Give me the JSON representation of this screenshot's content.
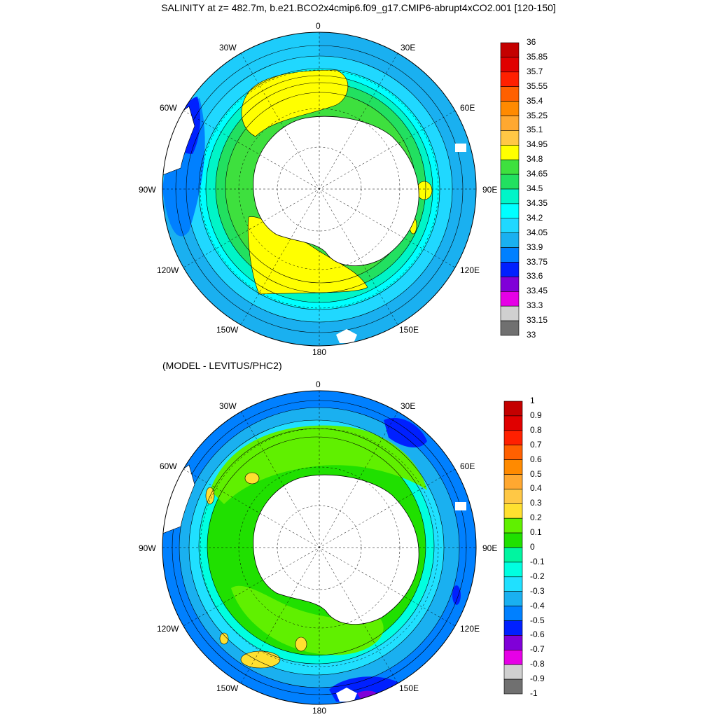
{
  "title": "SALINITY at z= 482.7m, b.e21.BCO2x4cmip6.f09_g17.CMIP6-abrupt4xCO2.001 [120-150]",
  "subtitle": "(MODEL - LEVITUS/PHC2)",
  "longitude_labels": [
    "0",
    "30E",
    "60E",
    "90E",
    "120E",
    "150E",
    "180",
    "150W",
    "120W",
    "90W",
    "60W",
    "30W"
  ],
  "top_map": {
    "colorbar_labels": [
      "36",
      "35.85",
      "35.7",
      "35.55",
      "35.4",
      "35.25",
      "35.1",
      "34.95",
      "34.8",
      "34.65",
      "34.5",
      "34.35",
      "34.2",
      "34.05",
      "33.9",
      "33.75",
      "33.6",
      "33.45",
      "33.3",
      "33.15",
      "33"
    ],
    "colorbar_colors": [
      "#c40000",
      "#e00000",
      "#ff2000",
      "#ff6000",
      "#ff8a00",
      "#ffa830",
      "#ffc845",
      "#ffff00",
      "#3ee03e",
      "#22e060",
      "#00f5c8",
      "#00ffff",
      "#20d8ff",
      "#1ab0f0",
      "#0080ff",
      "#0020ff",
      "#8000d8",
      "#e600e6",
      "#d0d0d0",
      "#707070"
    ]
  },
  "bottom_map": {
    "colorbar_labels": [
      "1",
      "0.9",
      "0.8",
      "0.7",
      "0.6",
      "0.5",
      "0.4",
      "0.3",
      "0.2",
      "0.1",
      "0",
      "-0.1",
      "-0.2",
      "-0.3",
      "-0.4",
      "-0.5",
      "-0.6",
      "-0.7",
      "-0.8",
      "-0.9",
      "-1"
    ],
    "colorbar_colors": [
      "#c40000",
      "#e00000",
      "#ff2000",
      "#ff6000",
      "#ff8a00",
      "#ffa830",
      "#ffc845",
      "#ffe030",
      "#60f000",
      "#20e000",
      "#00f5a0",
      "#00ffe0",
      "#20e0ff",
      "#1ab0f0",
      "#0080ff",
      "#0020ff",
      "#8000d8",
      "#e600e6",
      "#d0d0d0",
      "#707070"
    ]
  }
}
